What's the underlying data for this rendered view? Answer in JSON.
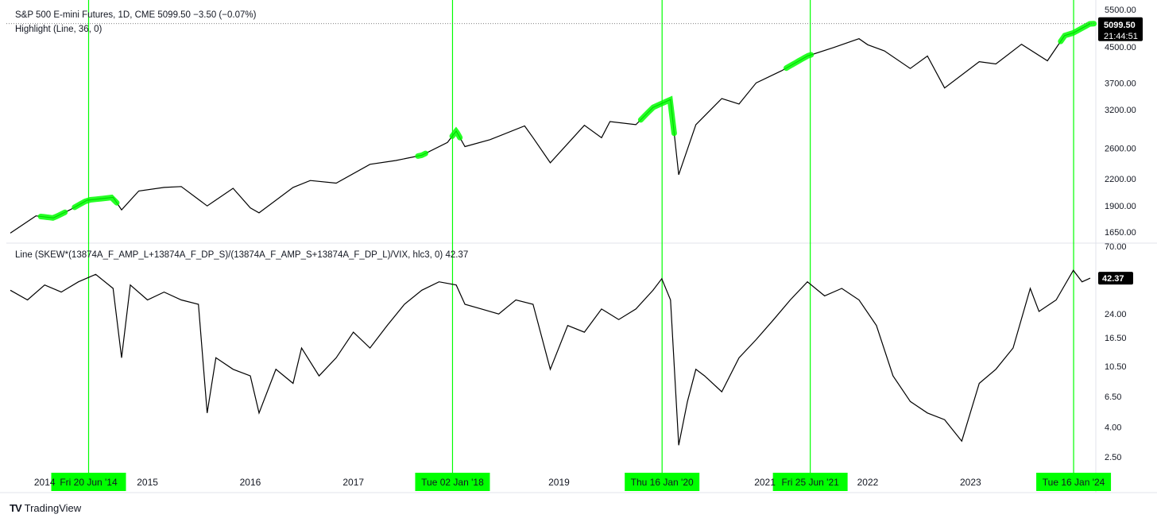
{
  "header": {
    "line1": "S&P 500 E-mini Futures, 1D, CME  5099.50  −3.50 (−0.07%)",
    "line2": "Highlight (Line, 36, 0)",
    "lower_title": "Line (SKEW*(13874A_F_AMP_L+13874A_F_DP_S)/(13874A_F_AMP_S+13874A_F_DP_L)/VIX, hlc3, 0)  42.37"
  },
  "branding": {
    "logo_text": "TV",
    "name": "TradingView"
  },
  "colors": {
    "line": "#000000",
    "highlight": "#00ff00",
    "grid": "#e0e3eb",
    "badge": "#000000"
  },
  "chart_data": [
    {
      "type": "line",
      "series": [
        {
          "name": "S&P 500 E-mini Futures",
          "x": [
            "2013-09",
            "2013-12",
            "2014-02",
            "2014-04",
            "2014-06",
            "2014-09",
            "2014-10",
            "2014-12",
            "2015-03",
            "2015-05",
            "2015-08",
            "2015-11",
            "2016-01",
            "2016-02",
            "2016-06",
            "2016-08",
            "2016-11",
            "2017-03",
            "2017-06",
            "2017-09",
            "2017-12",
            "2018-01",
            "2018-02",
            "2018-05",
            "2018-09",
            "2018-10",
            "2018-12",
            "2019-04",
            "2019-06",
            "2019-07",
            "2019-10",
            "2019-12",
            "2020-02",
            "2020-03",
            "2020-05",
            "2020-08",
            "2020-10",
            "2020-12",
            "2021-03",
            "2021-06",
            "2021-09",
            "2021-12",
            "2022-01",
            "2022-03",
            "2022-06",
            "2022-08",
            "2022-10",
            "2023-02",
            "2023-04",
            "2023-07",
            "2023-10",
            "2023-12",
            "2024-01",
            "2024-03"
          ],
          "values": [
            1640,
            1800,
            1780,
            1860,
            1960,
            1990,
            1860,
            2060,
            2100,
            2110,
            1900,
            2090,
            1880,
            1830,
            2100,
            2180,
            2150,
            2380,
            2430,
            2500,
            2680,
            2850,
            2620,
            2720,
            2930,
            2750,
            2400,
            2940,
            2750,
            3000,
            2950,
            3240,
            3380,
            2250,
            2950,
            3400,
            3300,
            3700,
            3950,
            4280,
            4480,
            4700,
            4550,
            4400,
            4000,
            4280,
            3600,
            4150,
            4100,
            4560,
            4170,
            4780,
            4850,
            5099.5
          ],
          "highlight_ranges": [
            [
              "2014-01",
              "2014-03"
            ],
            [
              "2014-05",
              "2014-09"
            ],
            [
              "2017-09",
              "2017-09"
            ],
            [
              "2018-01",
              "2018-01"
            ],
            [
              "2019-11",
              "2020-02"
            ],
            [
              "2021-04",
              "2021-06"
            ],
            [
              "2023-12",
              "2024-03"
            ]
          ]
        }
      ],
      "y_ticks": [
        5500,
        4500,
        3700,
        3200,
        2600,
        2200,
        1900,
        1650
      ],
      "y_scale": "log",
      "ylim": [
        1560,
        5600
      ],
      "last_value": "5099.50",
      "countdown": "21:44:51"
    },
    {
      "type": "line",
      "series": [
        {
          "name": "Line (SKEW*(13874A_F_AMP_L+13874A_F_DP_S)/(13874A_F_AMP_S+13874A_F_DP_L)/VIX, hlc3, 0)",
          "x": [
            "2013-09",
            "2013-11",
            "2014-01",
            "2014-03",
            "2014-05",
            "2014-07",
            "2014-09",
            "2014-10",
            "2014-11",
            "2015-01",
            "2015-03",
            "2015-05",
            "2015-07",
            "2015-08",
            "2015-09",
            "2015-11",
            "2016-01",
            "2016-02",
            "2016-04",
            "2016-06",
            "2016-07",
            "2016-09",
            "2016-11",
            "2017-01",
            "2017-03",
            "2017-05",
            "2017-07",
            "2017-09",
            "2017-11",
            "2018-01",
            "2018-02",
            "2018-04",
            "2018-06",
            "2018-08",
            "2018-10",
            "2018-12",
            "2019-02",
            "2019-04",
            "2019-06",
            "2019-08",
            "2019-10",
            "2019-12",
            "2020-01",
            "2020-02",
            "2020-03",
            "2020-04",
            "2020-05",
            "2020-06",
            "2020-08",
            "2020-10",
            "2020-12",
            "2021-02",
            "2021-04",
            "2021-06",
            "2021-08",
            "2021-10",
            "2021-12",
            "2022-02",
            "2022-04",
            "2022-06",
            "2022-08",
            "2022-10",
            "2022-12",
            "2023-02",
            "2023-04",
            "2023-06",
            "2023-08",
            "2023-09",
            "2023-11",
            "2024-01",
            "2024-02",
            "2024-03"
          ],
          "values": [
            35,
            30,
            38,
            34,
            40,
            45,
            36,
            12,
            38,
            30,
            34,
            30,
            28,
            5,
            12,
            10,
            9,
            5,
            10,
            8,
            14,
            9,
            12,
            18,
            14,
            20,
            28,
            35,
            40,
            38,
            28,
            26,
            24,
            30,
            28,
            10,
            20,
            18,
            26,
            22,
            26,
            35,
            42,
            30,
            3,
            6,
            10,
            9,
            7,
            12,
            16,
            22,
            30,
            40,
            32,
            36,
            30,
            20,
            9,
            6,
            5,
            4.5,
            3.2,
            8,
            10,
            14,
            36,
            25,
            30,
            48,
            40,
            42.37
          ]
        }
      ],
      "y_ticks": [
        "70.00",
        "24.00",
        "16.50",
        "10.50",
        "6.50",
        "4.00",
        "2.50"
      ],
      "y_scale": "log",
      "ylim": [
        2.2,
        72
      ],
      "last_value": "42.37"
    }
  ],
  "x_axis": {
    "years": [
      "2014",
      "2015",
      "2016",
      "2017",
      "2019",
      "2021",
      "2022",
      "2023"
    ],
    "markers": [
      {
        "label": "Fri 20 Jun '14",
        "date": "2014-06-20"
      },
      {
        "label": "Tue 02 Jan '18",
        "date": "2018-01-02"
      },
      {
        "label": "Thu 16 Jan '20",
        "date": "2020-01-16"
      },
      {
        "label": "Fri 25 Jun '21",
        "date": "2021-06-25"
      },
      {
        "label": "Tue 16 Jan '24",
        "date": "2024-01-16"
      }
    ]
  }
}
